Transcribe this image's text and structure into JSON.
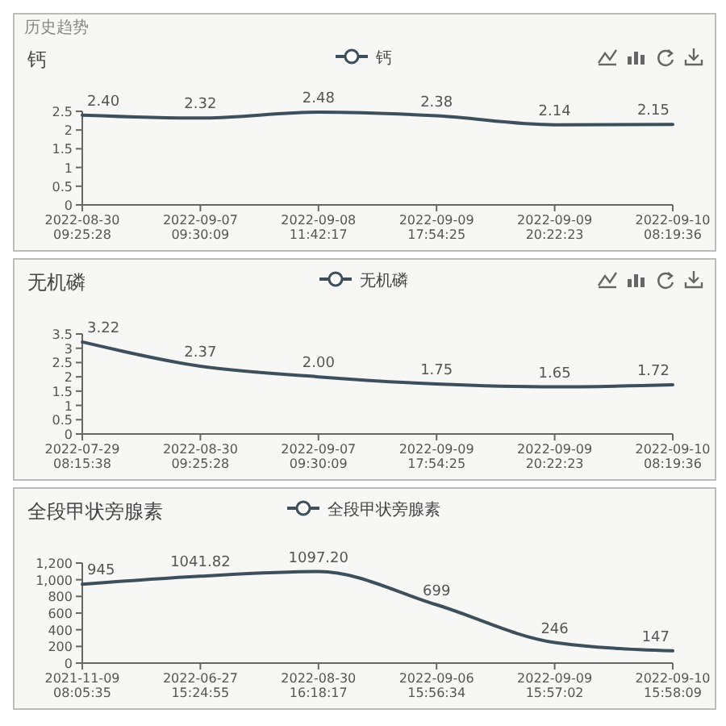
{
  "chart_data": [
    {
      "type": "line",
      "title": "钙",
      "annotations": [
        "历史趋势"
      ],
      "categories": [
        "2022-08-30\n09:25:28",
        "2022-09-07\n09:30:09",
        "2022-09-08\n11:42:17",
        "2022-09-09\n17:54:25",
        "2022-09-09\n20:22:23",
        "2022-09-10\n08:19:36"
      ],
      "series": [
        {
          "name": "钙",
          "color": "#3d4f5c",
          "values": [
            2.4,
            2.32,
            2.48,
            2.38,
            2.14,
            2.15
          ],
          "value_labels": [
            "2.40",
            "2.32",
            "2.48",
            "2.38",
            "2.14",
            "2.15"
          ]
        }
      ],
      "ylim": [
        0,
        2.5
      ],
      "yticks": [
        0,
        0.5,
        1,
        1.5,
        2,
        2.5
      ],
      "legend": "top"
    },
    {
      "type": "line",
      "title": "无机磷",
      "categories": [
        "2022-07-29\n08:15:38",
        "2022-08-30\n09:25:28",
        "2022-09-07\n09:30:09",
        "2022-09-09\n17:54:25",
        "2022-09-09\n20:22:23",
        "2022-09-10\n08:19:36"
      ],
      "series": [
        {
          "name": "无机磷",
          "color": "#3d4f5c",
          "values": [
            3.22,
            2.37,
            2.0,
            1.75,
            1.65,
            1.72
          ],
          "value_labels": [
            "3.22",
            "2.37",
            "2.00",
            "1.75",
            "1.65",
            "1.72"
          ]
        }
      ],
      "ylim": [
        0,
        3.5
      ],
      "yticks": [
        0,
        0.5,
        1,
        1.5,
        2,
        2.5,
        3,
        3.5
      ],
      "legend": "top"
    },
    {
      "type": "line",
      "title": "全段甲状旁腺素",
      "categories": [
        "2021-11-09\n08:05:35",
        "2022-06-27\n15:24:55",
        "2022-08-30\n16:18:17",
        "2022-09-06\n15:56:34",
        "2022-09-09\n15:57:02",
        "2022-09-10\n15:58:09"
      ],
      "series": [
        {
          "name": "全段甲状旁腺素",
          "color": "#3d4f5c",
          "values": [
            945,
            1041.82,
            1097.2,
            699,
            246,
            147
          ],
          "value_labels": [
            "945",
            "1041.82",
            "1097.20",
            "699",
            "246",
            "147"
          ]
        }
      ],
      "ylim": [
        0,
        1200
      ],
      "yticks": [
        0,
        200,
        400,
        600,
        800,
        {
          "value": 1000,
          "label": "1,000"
        },
        {
          "value": 1200,
          "label": "1,200"
        }
      ],
      "legend": "top"
    }
  ]
}
